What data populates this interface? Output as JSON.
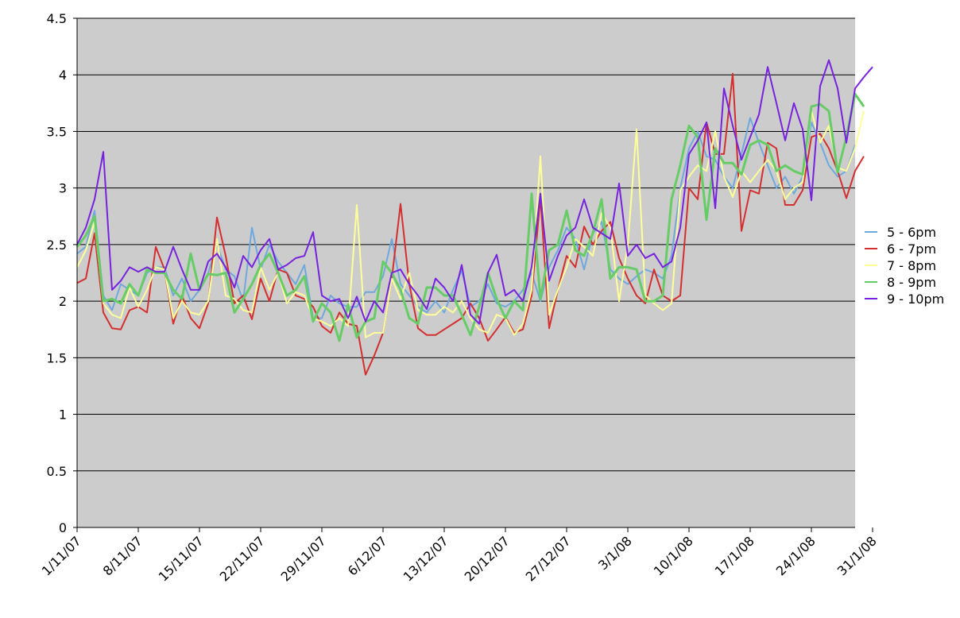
{
  "chart_data": {
    "type": "line",
    "title": "",
    "xlabel": "",
    "ylabel": "",
    "ylim": [
      0,
      4.5
    ],
    "yticks": [
      "0",
      "0.5",
      "1",
      "1.5",
      "2",
      "2.5",
      "3",
      "3.5",
      "4",
      "4.5"
    ],
    "x_tick_labels": [
      "1/11/07",
      "8/11/07",
      "15/11/07",
      "22/11/07",
      "29/11/07",
      "6/12/07",
      "13/12/07",
      "20/12/07",
      "27/12/07",
      "3/1/08",
      "10/1/08",
      "17/1/08",
      "24/1/08",
      "31/1/08"
    ],
    "x_start": "1/11/07",
    "x_end": "1/2/08",
    "grid": {
      "horizontal": true,
      "vertical": false
    },
    "plot_background": "#cccccc",
    "legend_placement": "right",
    "series": [
      {
        "name": "5 - 6pm",
        "color": "#6fa8dc",
        "values": [
          2.42,
          2.48,
          2.8,
          2.05,
          1.92,
          2.15,
          2.1,
          2.05,
          2.25,
          2.3,
          2.3,
          2.05,
          2.2,
          2.0,
          2.1,
          2.25,
          2.5,
          2.28,
          2.22,
          2.0,
          2.65,
          2.28,
          2.5,
          2.35,
          2.25,
          2.15,
          2.32,
          1.85,
          1.85,
          2.05,
          1.98,
          1.95,
          1.95,
          2.08,
          2.08,
          2.22,
          2.55,
          2.15,
          2.05,
          1.95,
          1.9,
          2.0,
          1.9,
          2.1,
          2.27,
          1.95,
          2.0,
          2.15,
          1.98,
          1.95,
          2.0,
          2.1,
          2.25,
          2.0,
          2.3,
          2.45,
          2.65,
          2.55,
          2.28,
          2.6,
          2.7,
          2.28,
          2.2,
          2.15,
          2.22,
          2.28,
          2.25,
          2.2,
          2.4,
          3.0,
          3.35,
          3.5,
          3.28,
          3.25,
          3.1,
          3.0,
          3.3,
          3.62,
          3.4,
          3.2,
          3.0,
          3.1,
          2.95,
          3.1,
          3.58,
          3.4,
          3.2,
          3.1,
          3.15,
          3.38
        ]
      },
      {
        "name": "6 - 7pm",
        "color": "#d32f2f",
        "values": [
          2.16,
          2.2,
          2.6,
          1.9,
          1.76,
          1.75,
          1.92,
          1.95,
          1.9,
          2.48,
          2.28,
          1.8,
          2.05,
          1.85,
          1.76,
          1.98,
          2.74,
          2.4,
          1.98,
          2.05,
          1.84,
          2.2,
          2.0,
          2.28,
          2.25,
          2.05,
          2.02,
          1.95,
          1.78,
          1.72,
          1.9,
          1.8,
          1.78,
          1.35,
          1.52,
          1.72,
          2.2,
          2.86,
          2.15,
          1.76,
          1.7,
          1.7,
          1.75,
          1.8,
          1.85,
          1.98,
          1.85,
          1.65,
          1.75,
          1.86,
          1.72,
          1.75,
          2.05,
          2.92,
          1.76,
          2.1,
          2.4,
          2.3,
          2.66,
          2.5,
          2.62,
          2.7,
          2.38,
          2.2,
          2.05,
          1.98,
          2.28,
          2.05,
          2.0,
          2.05,
          3.0,
          2.9,
          3.58,
          3.3,
          3.3,
          4.01,
          2.62,
          2.98,
          2.95,
          3.4,
          3.35,
          2.85,
          2.85,
          2.98,
          3.45,
          3.48,
          3.35,
          3.15,
          2.91,
          3.15,
          3.28
        ]
      },
      {
        "name": "7 - 8pm",
        "color": "#ffff99",
        "values": [
          2.3,
          2.45,
          2.7,
          1.98,
          1.88,
          1.85,
          2.12,
          1.95,
          2.1,
          2.3,
          2.28,
          1.85,
          2.0,
          1.9,
          1.88,
          2.0,
          2.55,
          2.05,
          2.02,
          1.92,
          1.9,
          2.3,
          2.1,
          2.25,
          1.98,
          2.08,
          2.05,
          1.85,
          1.82,
          1.78,
          1.85,
          1.78,
          2.85,
          1.68,
          1.72,
          1.72,
          2.2,
          2.02,
          2.25,
          1.92,
          1.88,
          1.88,
          1.95,
          1.9,
          2.0,
          1.85,
          1.75,
          1.72,
          1.88,
          1.85,
          1.7,
          1.8,
          2.1,
          3.28,
          1.88,
          2.1,
          2.3,
          2.55,
          2.48,
          2.4,
          2.78,
          2.65,
          2.0,
          2.5,
          3.52,
          2.05,
          1.98,
          1.92,
          1.98,
          2.98,
          3.1,
          3.2,
          3.15,
          3.5,
          3.1,
          2.92,
          3.15,
          3.05,
          3.15,
          3.25,
          3.15,
          2.9,
          3.0,
          3.05,
          3.68,
          3.4,
          3.55,
          3.18,
          3.15,
          3.35,
          3.68
        ]
      },
      {
        "name": "8 - 9pm",
        "color": "#66cc66",
        "values": [
          2.48,
          2.58,
          2.75,
          2.0,
          2.02,
          1.98,
          2.15,
          2.05,
          2.28,
          2.25,
          2.25,
          2.1,
          2.02,
          2.42,
          2.1,
          2.24,
          2.23,
          2.25,
          1.9,
          2.02,
          2.15,
          2.32,
          2.42,
          2.25,
          2.05,
          2.1,
          2.22,
          1.82,
          1.98,
          1.9,
          1.65,
          1.97,
          1.68,
          1.82,
          1.85,
          2.35,
          2.25,
          2.1,
          1.85,
          1.8,
          2.12,
          2.12,
          2.05,
          2.05,
          1.88,
          1.7,
          1.95,
          2.25,
          2.02,
          1.85,
          2.0,
          1.92,
          2.95,
          2.02,
          2.45,
          2.5,
          2.8,
          2.45,
          2.4,
          2.6,
          2.9,
          2.2,
          2.3,
          2.3,
          2.28,
          2.0,
          2.0,
          2.05,
          2.9,
          3.2,
          3.55,
          3.45,
          2.72,
          3.35,
          3.22,
          3.22,
          3.12,
          3.38,
          3.42,
          3.38,
          3.15,
          3.2,
          3.15,
          3.12,
          3.72,
          3.74,
          3.68,
          3.14,
          3.45,
          3.83,
          3.72
        ]
      },
      {
        "name": "9 - 10pm",
        "color": "#7722dd",
        "values": [
          2.5,
          2.65,
          2.9,
          3.32,
          2.1,
          2.18,
          2.3,
          2.26,
          2.3,
          2.26,
          2.26,
          2.48,
          2.28,
          2.1,
          2.1,
          2.35,
          2.42,
          2.3,
          2.12,
          2.4,
          2.3,
          2.45,
          2.55,
          2.28,
          2.32,
          2.38,
          2.4,
          2.61,
          2.05,
          2.0,
          2.02,
          1.85,
          2.04,
          1.82,
          2.0,
          1.9,
          2.25,
          2.28,
          2.15,
          2.05,
          1.93,
          2.2,
          2.12,
          2.0,
          2.32,
          1.88,
          1.8,
          2.25,
          2.41,
          2.05,
          2.1,
          2.0,
          2.3,
          2.95,
          2.18,
          2.4,
          2.58,
          2.65,
          2.9,
          2.65,
          2.6,
          2.55,
          3.04,
          2.4,
          2.5,
          2.38,
          2.42,
          2.3,
          2.35,
          2.65,
          3.3,
          3.42,
          3.58,
          2.82,
          3.88,
          3.55,
          3.25,
          3.45,
          3.65,
          4.07,
          3.75,
          3.42,
          3.75,
          3.52,
          2.89,
          3.9,
          4.13,
          3.88,
          3.4,
          3.88,
          3.98,
          4.07
        ]
      }
    ]
  }
}
